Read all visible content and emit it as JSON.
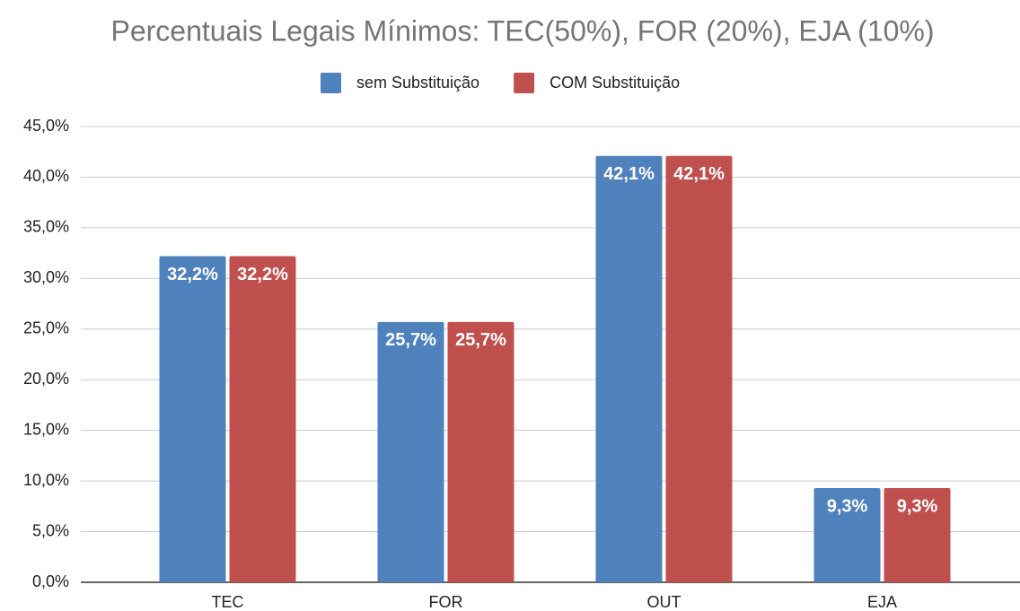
{
  "chart_data": {
    "type": "bar",
    "title": "Percentuais Legais Mínimos: TEC(50%), FOR (20%), EJA (10%)",
    "categories": [
      "TEC",
      "FOR",
      "OUT",
      "EJA"
    ],
    "series": [
      {
        "name": "sem Substituição",
        "color": "#4f81bd",
        "values": [
          32.2,
          25.7,
          42.1,
          9.3
        ],
        "value_labels": [
          "32,2%",
          "25,7%",
          "42,1%",
          "9,3%"
        ]
      },
      {
        "name": "COM Substituição",
        "color": "#c0504d",
        "values": [
          32.2,
          25.7,
          42.1,
          9.3
        ],
        "value_labels": [
          "32,2%",
          "25,7%",
          "42,1%",
          "9,3%"
        ]
      }
    ],
    "ylim": [
      0,
      45
    ],
    "yticks": [
      {
        "value": 0,
        "label": "0,0%"
      },
      {
        "value": 5,
        "label": "5,0%"
      },
      {
        "value": 10,
        "label": "10,0%"
      },
      {
        "value": 15,
        "label": "15,0%"
      },
      {
        "value": 20,
        "label": "20,0%"
      },
      {
        "value": 25,
        "label": "25,0%"
      },
      {
        "value": 30,
        "label": "30,0%"
      },
      {
        "value": 35,
        "label": "35,0%"
      },
      {
        "value": 40,
        "label": "40,0%"
      },
      {
        "value": 45,
        "label": "45,0%"
      }
    ],
    "grid": true,
    "legend": "top"
  }
}
